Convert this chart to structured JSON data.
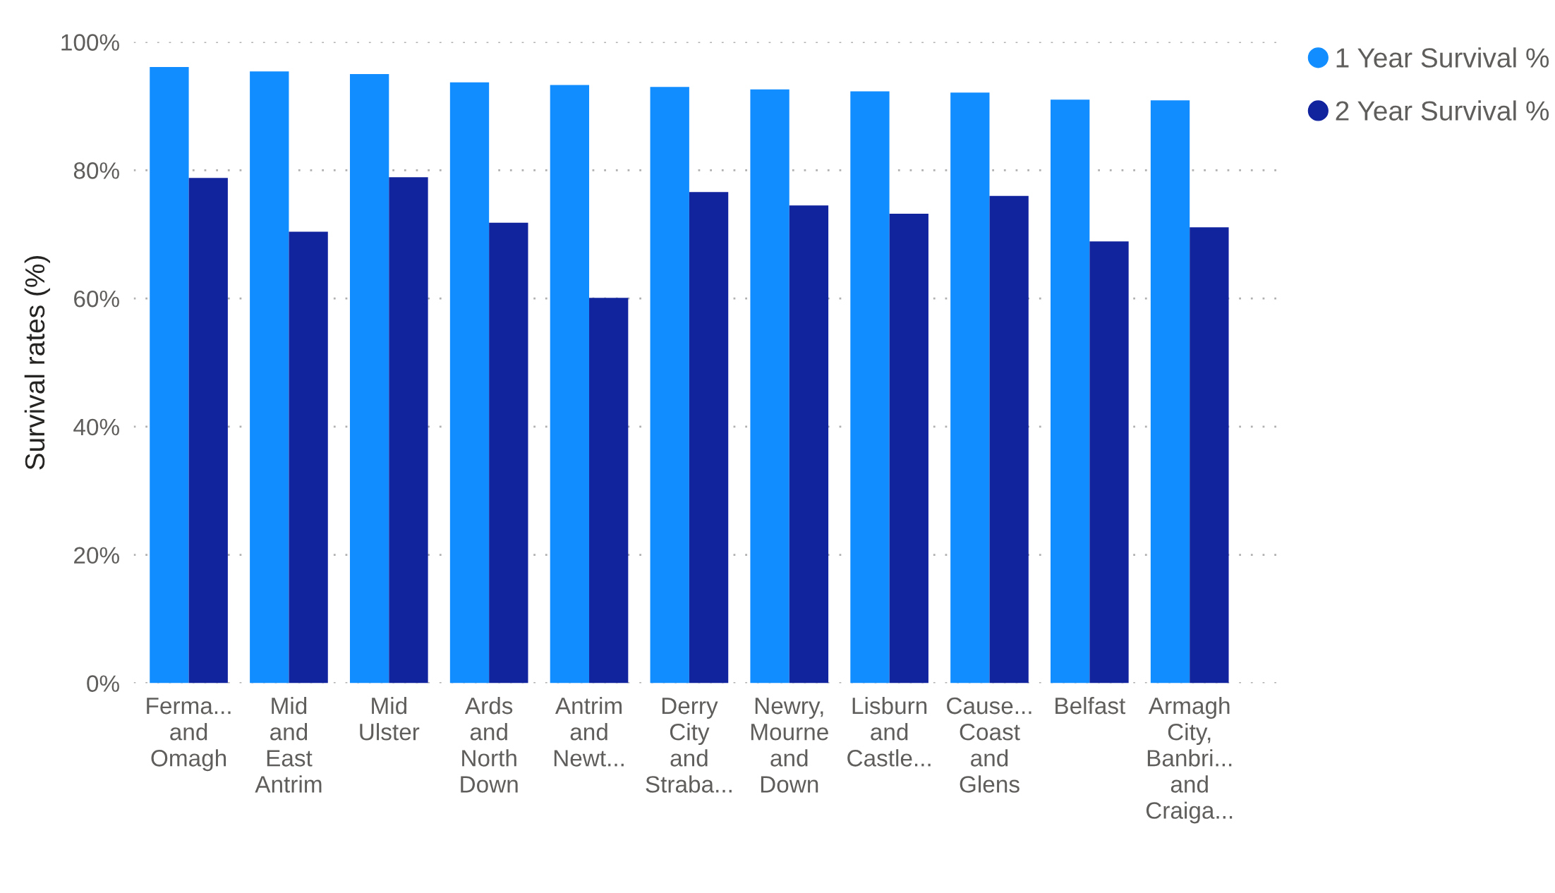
{
  "chart_data": {
    "type": "bar",
    "ylabel": "Survival rates (%)",
    "categories": [
      "Ferma... and Omagh",
      "Mid and East Antrim",
      "Mid Ulster",
      "Ards and North Down",
      "Antrim and Newt...",
      "Derry City and Straba...",
      "Newry, Mourne and Down",
      "Lisburn and Castle...",
      "Cause... Coast and Glens",
      "Belfast",
      "Armagh City, Banbri... and Craiga..."
    ],
    "series": [
      {
        "name": "1 Year Survival %",
        "color": "#118dff",
        "values": [
          96.1,
          95.4,
          95.0,
          93.7,
          93.3,
          93.0,
          92.6,
          92.3,
          92.1,
          91.0,
          90.9
        ]
      },
      {
        "name": "2 Year Survival %",
        "color": "#12239e",
        "values": [
          78.8,
          70.4,
          78.9,
          71.8,
          60.1,
          76.6,
          74.5,
          73.2,
          76.0,
          68.9,
          71.1
        ]
      }
    ],
    "ylim": [
      0,
      100
    ],
    "yticks": [
      {
        "value": 0,
        "label": "0%"
      },
      {
        "value": 20,
        "label": "20%"
      },
      {
        "value": 40,
        "label": "40%"
      },
      {
        "value": 60,
        "label": "60%"
      },
      {
        "value": 80,
        "label": "80%"
      },
      {
        "value": 100,
        "label": "100%"
      }
    ],
    "grid": "y",
    "legend": "top right"
  }
}
